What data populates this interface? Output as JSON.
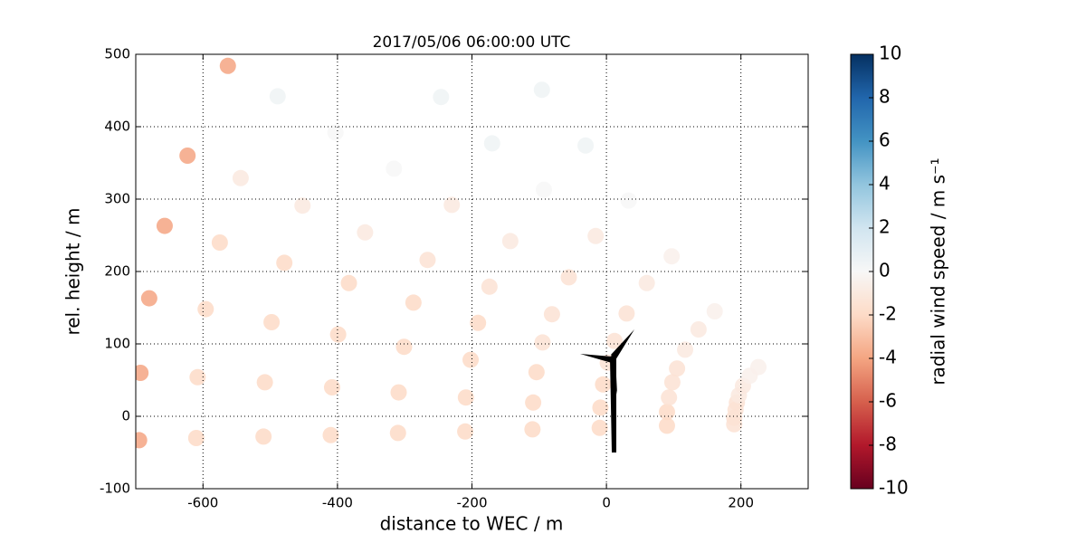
{
  "chart_data": {
    "type": "scatter",
    "title": "2017/05/06 06:00:00 UTC",
    "xlabel": "distance to WEC / m",
    "ylabel": "rel. height / m",
    "colorbar_label": "radial wind speed / m s⁻¹",
    "x": [
      190,
      90,
      -10,
      -110,
      -210,
      -310,
      -410,
      -510,
      -610,
      -695,
      190,
      90,
      -9,
      -109,
      -209,
      -309,
      -408,
      -508,
      -608,
      -693,
      192,
      93,
      -5,
      -104,
      -202,
      -301,
      -399,
      -498,
      -596,
      -680,
      194,
      98,
      2,
      -95,
      -191,
      -287,
      -383,
      -479,
      -575,
      -657,
      197,
      105,
      12,
      -81,
      -174,
      -266,
      -359,
      -452,
      -544,
      -623,
      203,
      117,
      30,
      -56,
      -143,
      -230,
      -316,
      -403,
      -489,
      -563,
      213,
      137,
      60,
      -16,
      -93,
      -170,
      -246,
      226,
      161,
      97,
      33,
      -31,
      -96
    ],
    "values": [
      -11,
      -13,
      -16,
      -18,
      -21,
      -23,
      -26,
      -28,
      -30,
      -33,
      -2,
      6,
      12,
      19,
      26,
      33,
      40,
      47,
      54,
      60,
      9,
      26,
      44,
      61,
      78,
      96,
      113,
      130,
      148,
      163,
      19,
      47,
      74,
      102,
      129,
      157,
      184,
      212,
      240,
      263,
      29,
      66,
      104,
      141,
      179,
      216,
      254,
      291,
      329,
      360,
      42,
      92,
      142,
      192,
      242,
      292,
      342,
      392,
      442,
      484,
      56,
      120,
      184,
      249,
      313,
      377,
      441,
      68,
      145,
      221,
      298,
      374,
      451
    ],
    "color_values": [
      -1.5,
      -2,
      -2,
      -2,
      -2,
      -2,
      -2,
      -2,
      -2,
      -4,
      -1.5,
      -2,
      -2,
      -2,
      -2,
      -2,
      -2,
      -2,
      -2,
      -4,
      -1.5,
      -1.5,
      -2,
      -2,
      -2,
      -2,
      -2,
      -2,
      -2,
      -4,
      -1.5,
      -1.5,
      -1.5,
      -1.5,
      -2,
      -2,
      -2,
      -2,
      -2,
      -4,
      -1,
      -1.5,
      -1.5,
      -1.5,
      -1.5,
      -1.5,
      -1,
      -1,
      -1,
      -4,
      -1,
      -1,
      -1.5,
      -1.5,
      -1,
      -1,
      0,
      0,
      0.5,
      -4,
      -0.5,
      -1,
      -1,
      -1,
      0,
      0.5,
      0.5,
      -0.5,
      -0.5,
      -0.5,
      0,
      0.5,
      0.5
    ],
    "xlim": [
      -700,
      300
    ],
    "xticks": [
      -600,
      -400,
      -200,
      0,
      200
    ],
    "ylim": [
      -100,
      500
    ],
    "yticks": [
      -100,
      0,
      100,
      200,
      300,
      400,
      500
    ],
    "clim": [
      -10,
      10
    ],
    "cticks": [
      -10,
      -8,
      -6,
      -4,
      -2,
      0,
      2,
      4,
      6,
      8,
      10
    ],
    "colormap": [
      "#67001f",
      "#b2182b",
      "#d6604d",
      "#f4a582",
      "#fddbc7",
      "#f7f7f7",
      "#d1e5f0",
      "#92c5de",
      "#4393c3",
      "#2166ac",
      "#053061"
    ],
    "grid": true
  }
}
